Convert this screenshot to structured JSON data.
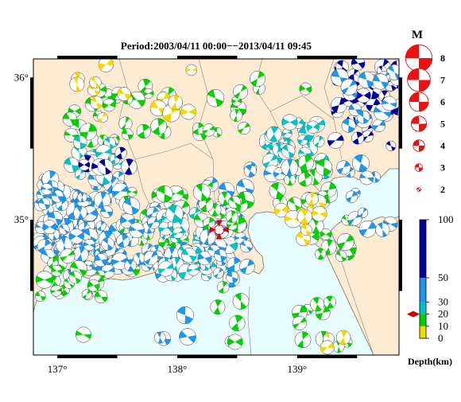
{
  "title": "Period:2003/04/11 00:00−−2013/04/11 09:45",
  "map": {
    "lon_range": [
      136.8,
      139.85
    ],
    "lat_range": [
      34.05,
      36.13
    ],
    "lat_labels": [
      "36°",
      "35°"
    ],
    "lat_label_values": [
      36,
      35
    ],
    "lon_labels": [
      "137°",
      "138°",
      "139°"
    ],
    "lon_label_values": [
      137,
      138,
      139
    ],
    "colors": {
      "land": "#fdebd3",
      "sea": "#e8fdfd",
      "coast": "#7a7060",
      "boundary": "#888888",
      "frame": "#000000"
    }
  },
  "magnitude_legend": {
    "header": "M",
    "items": [
      {
        "label": "8",
        "m": 8
      },
      {
        "label": "7",
        "m": 7
      },
      {
        "label": "6",
        "m": 6
      },
      {
        "label": "5",
        "m": 5
      },
      {
        "label": "4",
        "m": 4
      },
      {
        "label": "3",
        "m": 3
      },
      {
        "label": "2",
        "m": 2
      }
    ]
  },
  "depth_scale": {
    "title": "Depth(km)",
    "ticks": [
      {
        "label": "100",
        "depth": 100
      },
      {
        "label": "50",
        "depth": 50
      },
      {
        "label": "30",
        "depth": 30
      },
      {
        "label": "20",
        "depth": 20
      },
      {
        "label": "10",
        "depth": 10
      },
      {
        "label": "0",
        "depth": 0
      }
    ],
    "bands": [
      {
        "from": 0,
        "to": 10,
        "color": "#f2d900"
      },
      {
        "from": 10,
        "to": 20,
        "color": "#00d200"
      },
      {
        "from": 20,
        "to": 30,
        "color": "#00c4c4"
      },
      {
        "from": 30,
        "to": 50,
        "color": "#1e96ec"
      },
      {
        "from": 50,
        "to": 100,
        "color": "#0000a0"
      }
    ],
    "marker_depth": 20,
    "marker_color": "#cc0000"
  },
  "star_event": {
    "lon": 138.35,
    "lat": 34.93,
    "color": "#dd0000"
  },
  "clusters": [
    {
      "lon": [
        136.85,
        137.55
      ],
      "lat": [
        34.6,
        35.3
      ],
      "n": 130,
      "color": "#1e96ec"
    },
    {
      "lon": [
        136.85,
        137.4
      ],
      "lat": [
        34.45,
        34.75
      ],
      "n": 20,
      "color": "#00d200"
    },
    {
      "lon": [
        137.55,
        138.05
      ],
      "lat": [
        34.65,
        35.2
      ],
      "n": 45,
      "color": "#00d200"
    },
    {
      "lon": [
        137.5,
        138.05
      ],
      "lat": [
        34.6,
        35.1
      ],
      "n": 30,
      "color": "#1e96ec"
    },
    {
      "lon": [
        137.85,
        138.45
      ],
      "lat": [
        34.6,
        35.05
      ],
      "n": 35,
      "color": "#00c4c4"
    },
    {
      "lon": [
        138.2,
        138.6
      ],
      "lat": [
        34.55,
        35.25
      ],
      "n": 30,
      "color": "#1e96ec"
    },
    {
      "lon": [
        138.2,
        138.6
      ],
      "lat": [
        34.95,
        35.25
      ],
      "n": 15,
      "color": "#00d200"
    },
    {
      "lon": [
        138.75,
        139.25
      ],
      "lat": [
        35.3,
        35.7
      ],
      "n": 30,
      "color": "#00c4c4"
    },
    {
      "lon": [
        138.8,
        139.3
      ],
      "lat": [
        35.1,
        35.45
      ],
      "n": 18,
      "color": "#00d200"
    },
    {
      "lon": [
        139.1,
        139.45
      ],
      "lat": [
        34.7,
        35.0
      ],
      "n": 15,
      "color": "#00d200"
    },
    {
      "lon": [
        139.2,
        139.8
      ],
      "lat": [
        34.9,
        35.4
      ],
      "n": 12,
      "color": "#1e96ec"
    },
    {
      "lon": [
        139.3,
        139.85
      ],
      "lat": [
        35.5,
        36.1
      ],
      "n": 40,
      "color": "#0000a0"
    },
    {
      "lon": [
        139.35,
        139.85
      ],
      "lat": [
        35.65,
        36.05
      ],
      "n": 18,
      "color": "#1e96ec"
    },
    {
      "lon": [
        137.1,
        137.95
      ],
      "lat": [
        35.55,
        35.95
      ],
      "n": 30,
      "color": "#00d200"
    },
    {
      "lon": [
        137.05,
        137.55
      ],
      "lat": [
        35.3,
        35.55
      ],
      "n": 18,
      "color": "#00c4c4"
    },
    {
      "lon": [
        137.2,
        137.6
      ],
      "lat": [
        35.35,
        35.5
      ],
      "n": 6,
      "color": "#0000a0"
    },
    {
      "lon": [
        137.1,
        138.2
      ],
      "lat": [
        35.7,
        36.1
      ],
      "n": 14,
      "color": "#f2d900"
    },
    {
      "lon": [
        138.1,
        139.1
      ],
      "lat": [
        35.6,
        36.0
      ],
      "n": 14,
      "color": "#00d200"
    },
    {
      "lon": [
        138.85,
        139.2
      ],
      "lat": [
        34.85,
        35.3
      ],
      "n": 10,
      "color": "#f2d900"
    },
    {
      "lon": [
        138.6,
        139.0
      ],
      "lat": [
        35.3,
        35.45
      ],
      "n": 6,
      "color": "#1e96ec"
    },
    {
      "lon": [
        139.0,
        139.5
      ],
      "lat": [
        34.1,
        34.45
      ],
      "n": 10,
      "color": "#00d200"
    },
    {
      "lon": [
        139.2,
        139.4
      ],
      "lat": [
        34.1,
        34.25
      ],
      "n": 4,
      "color": "#f2d900"
    },
    {
      "lon": [
        137.2,
        138.6
      ],
      "lat": [
        34.1,
        34.55
      ],
      "n": 8,
      "color": "#00d200"
    },
    {
      "lon": [
        137.85,
        138.25
      ],
      "lat": [
        34.15,
        34.35
      ],
      "n": 4,
      "color": "#1e96ec"
    }
  ]
}
